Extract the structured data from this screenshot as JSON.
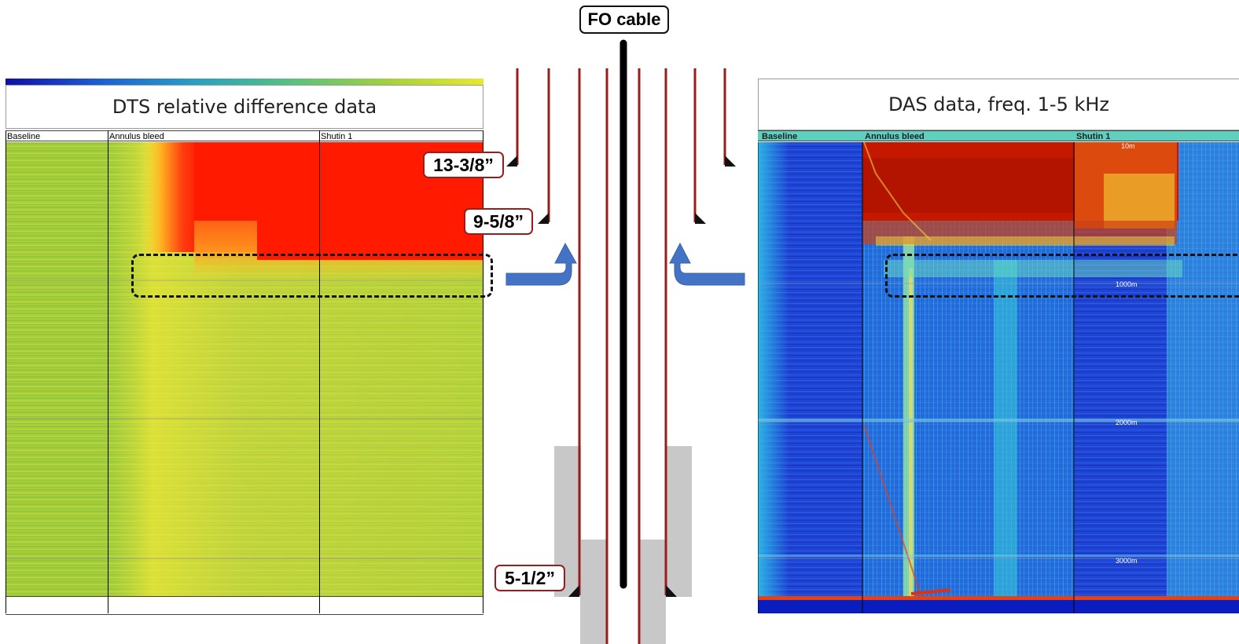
{
  "fo_cable_label": "FO cable",
  "dts": {
    "title": "DTS relative difference data",
    "phases": [
      "Baseline",
      "Annulus bleed",
      "Shutin 1"
    ]
  },
  "das": {
    "title": "DAS data, freq. 1-5 kHz",
    "phases": [
      "Baseline",
      "Annulus bleed",
      "Shutin 1"
    ],
    "depth_labels": [
      "10m",
      "1000m",
      "2000m",
      "3000m"
    ]
  },
  "casing_labels": {
    "c1": "13-3/8”",
    "c2": "9-5/8”",
    "c3": "5-1/2”"
  },
  "colors": {
    "casing": "#9b1c1c",
    "arrow": "#4472c4",
    "cement": "#c8c8c8",
    "cable": "#000000",
    "dts_hot": "#ff1a00",
    "dts_base": "#a9cf3a",
    "das_base": "#1a3fd0",
    "das_hot": "#c81800"
  }
}
